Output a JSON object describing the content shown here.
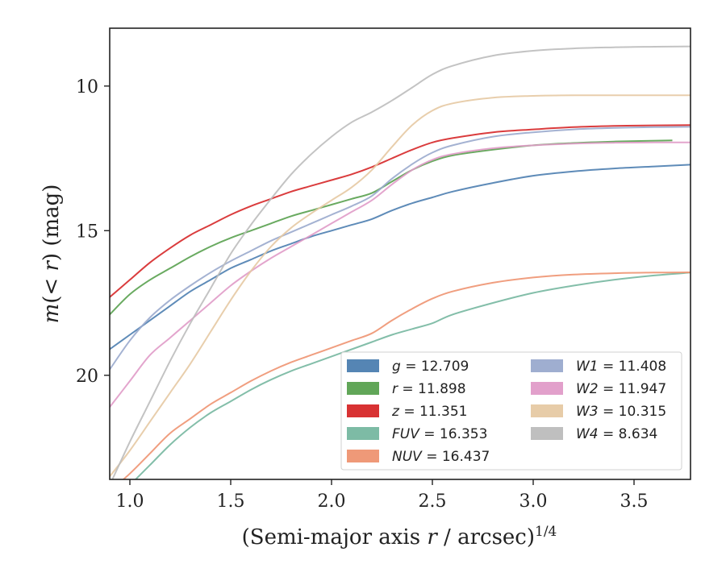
{
  "chart_data": {
    "type": "line",
    "xlabel": "(Semi-major axis r / arcsec)^1/4",
    "ylabel": "m(< r) (mag)",
    "xlim": [
      0.9,
      3.78
    ],
    "ylim": [
      23.6,
      8.0
    ],
    "y_inverted": true,
    "grid": false,
    "legend_position": "lower-right",
    "x_ticks": [
      1.0,
      1.5,
      2.0,
      2.5,
      3.0,
      3.5
    ],
    "x_tick_labels": [
      "1.0",
      "1.5",
      "2.0",
      "2.5",
      "3.0",
      "3.5"
    ],
    "y_ticks": [
      10,
      15,
      20
    ],
    "y_tick_labels": [
      "10",
      "15",
      "20"
    ],
    "series": [
      {
        "name": "g = 12.709",
        "label_var": "g",
        "label_val": "12.709",
        "color": "#4c7eb0",
        "x": [
          0.9,
          1.0,
          1.1,
          1.2,
          1.3,
          1.4,
          1.5,
          1.6,
          1.7,
          1.8,
          1.9,
          2.0,
          2.1,
          2.2,
          2.3,
          2.4,
          2.5,
          2.6,
          2.8,
          3.0,
          3.2,
          3.4,
          3.6,
          3.78
        ],
        "y": [
          19.1,
          18.6,
          18.1,
          17.6,
          17.1,
          16.7,
          16.3,
          16.0,
          15.7,
          15.45,
          15.2,
          15.0,
          14.8,
          14.6,
          14.3,
          14.05,
          13.85,
          13.65,
          13.35,
          13.1,
          12.95,
          12.85,
          12.78,
          12.72
        ]
      },
      {
        "name": "r = 11.898",
        "label_var": "r",
        "label_val": "11.898",
        "color": "#59a14f",
        "x": [
          0.9,
          1.0,
          1.1,
          1.2,
          1.3,
          1.4,
          1.5,
          1.6,
          1.7,
          1.8,
          1.9,
          2.0,
          2.1,
          2.2,
          2.3,
          2.4,
          2.5,
          2.6,
          2.8,
          3.0,
          3.2,
          3.4,
          3.69
        ],
        "y": [
          17.9,
          17.2,
          16.7,
          16.3,
          15.9,
          15.55,
          15.25,
          15.0,
          14.75,
          14.5,
          14.3,
          14.1,
          13.9,
          13.7,
          13.3,
          12.9,
          12.6,
          12.4,
          12.2,
          12.05,
          11.97,
          11.92,
          11.88
        ]
      },
      {
        "name": "z = 11.351",
        "label_var": "z",
        "label_val": "11.351",
        "color": "#d62728",
        "x": [
          0.9,
          1.0,
          1.1,
          1.2,
          1.3,
          1.4,
          1.5,
          1.6,
          1.7,
          1.8,
          1.9,
          2.0,
          2.1,
          2.2,
          2.3,
          2.4,
          2.5,
          2.6,
          2.8,
          3.0,
          3.2,
          3.4,
          3.6,
          3.78
        ],
        "y": [
          17.3,
          16.7,
          16.1,
          15.6,
          15.15,
          14.8,
          14.45,
          14.15,
          13.9,
          13.65,
          13.45,
          13.25,
          13.05,
          12.8,
          12.5,
          12.2,
          11.95,
          11.8,
          11.6,
          11.5,
          11.42,
          11.38,
          11.36,
          11.35
        ]
      },
      {
        "name": "FUV = 16.353",
        "label_var": "FUV",
        "label_val": "16.353",
        "color": "#76b7a0",
        "x": [
          0.9,
          1.0,
          1.1,
          1.2,
          1.3,
          1.4,
          1.5,
          1.6,
          1.7,
          1.8,
          1.9,
          2.0,
          2.1,
          2.2,
          2.3,
          2.4,
          2.5,
          2.6,
          2.8,
          3.0,
          3.2,
          3.4,
          3.6,
          3.78
        ],
        "y": [
          24.5,
          23.8,
          23.1,
          22.4,
          21.8,
          21.3,
          20.9,
          20.5,
          20.15,
          19.85,
          19.6,
          19.35,
          19.1,
          18.85,
          18.6,
          18.4,
          18.2,
          17.9,
          17.5,
          17.15,
          16.9,
          16.7,
          16.55,
          16.45
        ]
      },
      {
        "name": "NUV = 16.437",
        "label_var": "NUV",
        "label_val": "16.437",
        "color": "#ee9371",
        "x": [
          0.9,
          1.0,
          1.1,
          1.2,
          1.3,
          1.4,
          1.5,
          1.6,
          1.7,
          1.8,
          1.9,
          2.0,
          2.1,
          2.2,
          2.3,
          2.4,
          2.5,
          2.6,
          2.8,
          3.0,
          3.2,
          3.4,
          3.6,
          3.78
        ],
        "y": [
          24.0,
          23.4,
          22.7,
          22.0,
          21.5,
          21.0,
          20.6,
          20.2,
          19.85,
          19.55,
          19.3,
          19.05,
          18.8,
          18.55,
          18.1,
          17.7,
          17.35,
          17.1,
          16.8,
          16.62,
          16.52,
          16.47,
          16.45,
          16.44
        ]
      },
      {
        "name": "W1 = 11.408",
        "label_var": "W1",
        "label_val": "11.408",
        "color": "#9aaacd",
        "x": [
          0.9,
          1.0,
          1.1,
          1.2,
          1.3,
          1.4,
          1.5,
          1.6,
          1.7,
          1.8,
          1.9,
          2.0,
          2.1,
          2.2,
          2.3,
          2.4,
          2.5,
          2.6,
          2.8,
          3.0,
          3.2,
          3.4,
          3.6,
          3.78
        ],
        "y": [
          19.8,
          18.8,
          18.0,
          17.4,
          16.9,
          16.45,
          16.05,
          15.7,
          15.35,
          15.05,
          14.75,
          14.45,
          14.15,
          13.8,
          13.2,
          12.7,
          12.3,
          12.05,
          11.75,
          11.6,
          11.5,
          11.45,
          11.42,
          11.41
        ]
      },
      {
        "name": "W2 = 11.947",
        "label_var": "W2",
        "label_val": "11.947",
        "color": "#e09bc8",
        "x": [
          0.9,
          1.0,
          1.1,
          1.2,
          1.3,
          1.4,
          1.5,
          1.6,
          1.7,
          1.8,
          1.9,
          2.0,
          2.1,
          2.2,
          2.3,
          2.4,
          2.5,
          2.6,
          2.8,
          3.0,
          3.2,
          3.4,
          3.6,
          3.78
        ],
        "y": [
          21.1,
          20.2,
          19.3,
          18.7,
          18.1,
          17.5,
          16.9,
          16.4,
          15.95,
          15.55,
          15.15,
          14.75,
          14.35,
          13.95,
          13.4,
          12.9,
          12.55,
          12.35,
          12.15,
          12.05,
          11.99,
          11.96,
          11.95,
          11.95
        ]
      },
      {
        "name": "W3 = 10.315",
        "label_var": "W3",
        "label_val": "10.315",
        "color": "#e6c9a3",
        "x": [
          0.9,
          1.0,
          1.1,
          1.2,
          1.3,
          1.4,
          1.5,
          1.6,
          1.7,
          1.8,
          1.9,
          2.0,
          2.1,
          2.2,
          2.3,
          2.4,
          2.5,
          2.6,
          2.8,
          3.0,
          3.2,
          3.4,
          3.6,
          3.78
        ],
        "y": [
          23.5,
          22.6,
          21.6,
          20.6,
          19.6,
          18.5,
          17.4,
          16.4,
          15.55,
          14.9,
          14.4,
          13.95,
          13.5,
          12.9,
          12.1,
          11.35,
          10.85,
          10.6,
          10.4,
          10.34,
          10.32,
          10.32,
          10.32,
          10.32
        ]
      },
      {
        "name": "W4 = 8.634",
        "label_var": "W4",
        "label_val": "8.634",
        "color": "#bcbcbc",
        "x": [
          0.9,
          1.0,
          1.1,
          1.2,
          1.3,
          1.4,
          1.5,
          1.6,
          1.7,
          1.8,
          1.9,
          2.0,
          2.1,
          2.2,
          2.3,
          2.4,
          2.5,
          2.6,
          2.8,
          3.0,
          3.2,
          3.4,
          3.6,
          3.78
        ],
        "y": [
          23.8,
          22.3,
          20.9,
          19.5,
          18.2,
          17.0,
          15.8,
          14.8,
          13.9,
          13.05,
          12.35,
          11.75,
          11.25,
          10.9,
          10.5,
          10.05,
          9.6,
          9.3,
          8.95,
          8.78,
          8.7,
          8.66,
          8.64,
          8.63
        ]
      }
    ]
  }
}
